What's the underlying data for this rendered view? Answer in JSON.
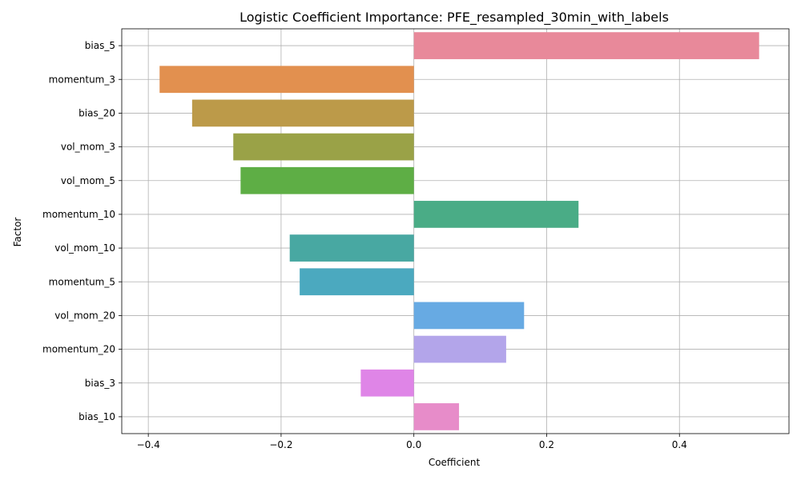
{
  "chart_data": {
    "type": "bar",
    "orientation": "horizontal",
    "title": "Logistic Coefficient Importance: PFE_resampled_30min_with_labels",
    "xlabel": "Coefficient",
    "ylabel": "Factor",
    "xlim": [
      -0.44,
      0.565
    ],
    "xticks": [
      -0.4,
      -0.2,
      0.0,
      0.2,
      0.4
    ],
    "xtick_labels": [
      "−0.4",
      "−0.2",
      "0.0",
      "0.2",
      "0.4"
    ],
    "grid": true,
    "categories": [
      "bias_5",
      "momentum_3",
      "bias_20",
      "vol_mom_3",
      "vol_mom_5",
      "momentum_10",
      "vol_mom_10",
      "momentum_5",
      "vol_mom_20",
      "momentum_20",
      "bias_3",
      "bias_10"
    ],
    "values": [
      0.52,
      -0.383,
      -0.334,
      -0.272,
      -0.261,
      0.248,
      -0.187,
      -0.172,
      0.166,
      0.139,
      -0.08,
      0.068
    ],
    "colors": [
      "#E8899A",
      "#E2904F",
      "#BC9A49",
      "#9AA247",
      "#5EAE45",
      "#4AAC86",
      "#48A8A2",
      "#4BA9BF",
      "#67AAE3",
      "#B3A5EA",
      "#DF85E7",
      "#E78CC9"
    ]
  }
}
